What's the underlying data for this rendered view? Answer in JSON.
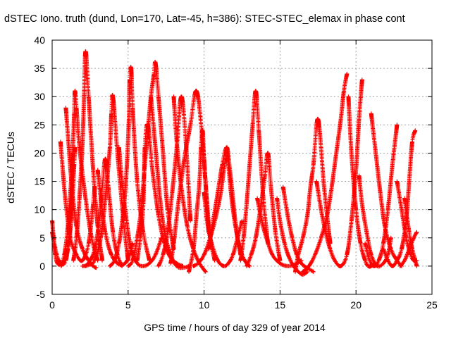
{
  "chart_data": {
    "type": "scatter",
    "title": "dSTEC Iono. truth (dund, Lon=170, Lat=-45, h=386): STEC-STEC_elemax in phase cont",
    "xlabel": "GPS time / hours of day 329 of year 2014",
    "ylabel": "dSTEC  / TECUs",
    "xlim": [
      0,
      25
    ],
    "ylim": [
      -5,
      40
    ],
    "xticks": [
      0,
      5,
      10,
      15,
      20,
      25
    ],
    "yticks": [
      -5,
      0,
      5,
      10,
      15,
      20,
      25,
      30,
      35,
      40
    ],
    "grid": true,
    "marker": "+",
    "color": "#ff0000",
    "series": [
      {
        "x": [
          0,
          0.1,
          0.2,
          0.35,
          0.55,
          0.8,
          1.1,
          1.3,
          1.45,
          1.5
        ],
        "y": [
          8,
          5,
          2,
          0.5,
          0.3,
          1,
          4,
          10,
          18,
          21
        ]
      },
      {
        "x": [
          0,
          0.3,
          0.6,
          0.9,
          1.15,
          1.3,
          1.35
        ],
        "y": [
          6,
          2,
          0.5,
          1,
          6,
          14,
          20
        ]
      },
      {
        "x": [
          0.55,
          0.7,
          0.9,
          1.2,
          1.6,
          2.0,
          2.4,
          2.7,
          2.8
        ],
        "y": [
          22,
          17,
          11,
          5,
          2,
          1,
          4,
          11,
          14
        ]
      },
      {
        "x": [
          0.9,
          1.1,
          1.3,
          1.6,
          2.0,
          2.4,
          2.7,
          2.9
        ],
        "y": [
          28,
          21,
          14,
          7,
          3,
          1,
          0,
          -0.3
        ]
      },
      {
        "x": [
          0.6,
          0.8,
          1.0,
          1.2,
          1.35,
          1.45,
          1.5,
          1.6,
          1.8,
          2.2,
          2.6,
          3.0
        ],
        "y": [
          0,
          2,
          6,
          13,
          20,
          27,
          31,
          28,
          21,
          12,
          5,
          1
        ]
      },
      {
        "x": [
          1.4,
          1.6,
          1.8,
          2.0,
          2.1,
          2.2,
          2.4,
          2.7,
          3.0,
          3.3
        ],
        "y": [
          1,
          5,
          12,
          22,
          30,
          38,
          30,
          17,
          7,
          1
        ]
      },
      {
        "x": [
          2.2,
          2.5,
          2.8,
          3.1,
          3.3,
          3.5,
          3.7,
          4.0,
          4.3,
          4.6
        ],
        "y": [
          0,
          1,
          3,
          8,
          14,
          19,
          14,
          6,
          2,
          0
        ]
      },
      {
        "x": [
          2.0,
          2.4,
          2.8,
          3.2,
          3.5,
          3.8,
          3.9,
          4.0,
          4.3,
          4.7,
          5.0
        ],
        "y": [
          0,
          0.2,
          1,
          5,
          12,
          21,
          27,
          30,
          20,
          8,
          1
        ]
      },
      {
        "x": [
          3.0,
          3.2,
          3.5,
          3.9,
          4.4,
          4.8,
          5.1,
          5.3
        ],
        "y": [
          17,
          12,
          6,
          2,
          0.3,
          0.5,
          2,
          4
        ]
      },
      {
        "x": [
          3.8,
          4.1,
          4.4,
          4.7,
          4.9,
          5.05,
          5.1,
          5.2,
          5.3,
          5.6,
          6.0,
          6.4
        ],
        "y": [
          0,
          1,
          4,
          10,
          17,
          26,
          33,
          35,
          28,
          15,
          6,
          1
        ]
      },
      {
        "x": [
          4.4,
          4.6,
          4.9,
          5.2,
          5.6,
          6.0,
          6.4,
          6.8,
          7.2
        ],
        "y": [
          21,
          15,
          8,
          3,
          0.5,
          0,
          0.5,
          2,
          5
        ]
      },
      {
        "x": [
          5.0,
          5.3,
          5.6,
          5.9,
          6.1,
          6.3,
          6.5,
          6.7,
          6.8,
          7.0,
          7.3,
          7.6,
          8.0
        ],
        "y": [
          0,
          1,
          5,
          11,
          18,
          24,
          30,
          34,
          36,
          30,
          20,
          10,
          3
        ]
      },
      {
        "x": [
          5.6,
          5.8,
          6.0,
          6.1,
          6.3,
          6.6,
          7.0,
          7.4,
          7.8,
          8.2,
          8.6
        ],
        "y": [
          1,
          5,
          11,
          21,
          25,
          17,
          9,
          4,
          1.5,
          0.5,
          0
        ]
      },
      {
        "x": [
          6.5,
          6.7,
          6.9,
          7.1,
          7.4,
          7.8,
          8.2,
          8.6,
          9.0
        ],
        "y": [
          30,
          24,
          18,
          12,
          6,
          2,
          0,
          -0.3,
          0
        ]
      },
      {
        "x": [
          7.0,
          7.3,
          7.6,
          7.9,
          8.2,
          8.5,
          8.8,
          9.1
        ],
        "y": [
          0,
          2,
          6,
          13,
          21,
          30,
          22,
          8
        ]
      },
      {
        "x": [
          7.8,
          8.0,
          8.3,
          8.7,
          9.1,
          9.5,
          9.9,
          10.3
        ],
        "y": [
          0.5,
          4,
          11,
          19,
          25,
          31,
          22,
          6
        ]
      },
      {
        "x": [
          8.0,
          8.2,
          8.5,
          8.9,
          9.3,
          9.7,
          10.1
        ],
        "y": [
          30,
          22,
          14,
          7,
          3,
          0.5,
          -1
        ]
      },
      {
        "x": [
          9.0,
          9.3,
          9.5,
          9.7,
          9.8,
          9.9,
          10.0,
          10.2,
          10.4,
          10.7
        ],
        "y": [
          -1,
          3,
          9,
          15,
          21,
          24,
          19,
          11,
          5,
          1
        ]
      },
      {
        "x": [
          9.3,
          9.6,
          10.0,
          10.4,
          10.8,
          11.1,
          11.3,
          11.5
        ],
        "y": [
          0,
          0.5,
          2,
          5,
          9,
          13,
          17,
          20
        ]
      },
      {
        "x": [
          10.0,
          10.2,
          10.5,
          10.9,
          11.3,
          11.6,
          11.9,
          12.2,
          12.5
        ],
        "y": [
          13,
          8,
          4,
          1,
          0,
          0.5,
          2,
          5,
          8
        ]
      },
      {
        "x": [
          10.3,
          10.6,
          10.9,
          11.2,
          11.5,
          11.7,
          11.9,
          12.1,
          12.4
        ],
        "y": [
          3,
          8,
          13,
          18,
          21,
          17,
          12,
          7,
          2
        ]
      },
      {
        "x": [
          11.5,
          11.7,
          11.9,
          12.2,
          12.5,
          12.8,
          13.0
        ],
        "y": [
          21,
          15,
          10,
          5,
          2,
          0.5,
          0
        ]
      },
      {
        "x": [
          12.4,
          12.6,
          12.8,
          13.0,
          13.2,
          13.4,
          13.6,
          13.9,
          14.2
        ],
        "y": [
          1,
          5,
          11,
          18,
          25,
          31,
          24,
          12,
          4
        ]
      },
      {
        "x": [
          12.8,
          13.1,
          13.4,
          13.7,
          14.0,
          14.2,
          14.4,
          14.7,
          15.0
        ],
        "y": [
          0,
          2,
          5,
          10,
          16,
          20,
          14,
          6,
          1
        ]
      },
      {
        "x": [
          13.5,
          13.8,
          14.1,
          14.5,
          15.0,
          15.5,
          16.0,
          16.4
        ],
        "y": [
          12,
          8,
          5,
          2,
          0.5,
          0,
          0.3,
          1
        ]
      },
      {
        "x": [
          14.8,
          15.0,
          15.3,
          15.6,
          15.9,
          16.2,
          16.5,
          16.8
        ],
        "y": [
          12,
          8,
          4,
          1.5,
          0,
          -1,
          -1.5,
          -1
        ]
      },
      {
        "x": [
          15.2,
          15.5,
          15.8,
          16.1,
          16.4,
          16.6,
          16.9,
          17.2
        ],
        "y": [
          14,
          9,
          5,
          2,
          0.5,
          0,
          -0.5,
          -1
        ]
      },
      {
        "x": [
          16.0,
          16.2,
          16.5,
          16.8,
          17.0,
          17.2,
          17.5,
          17.9,
          18.3
        ],
        "y": [
          -1,
          2,
          5,
          9,
          14,
          18,
          26,
          14,
          4
        ]
      },
      {
        "x": [
          16.5,
          16.9,
          17.3,
          17.7,
          18.1,
          18.4,
          18.7,
          19.0,
          19.2,
          19.4
        ],
        "y": [
          -1,
          0,
          2,
          5,
          9,
          14,
          20,
          26,
          31,
          34
        ]
      },
      {
        "x": [
          17.4,
          17.7,
          18.0,
          18.3,
          18.6,
          19.0,
          19.4,
          19.7,
          20.0,
          20.2,
          20.4
        ],
        "y": [
          15,
          10,
          6,
          3,
          1,
          0,
          2,
          8,
          17,
          26,
          33
        ]
      },
      {
        "x": [
          19.5,
          19.7,
          20.0,
          20.3,
          20.6,
          20.8,
          21.0,
          21.2
        ],
        "y": [
          30,
          20,
          10,
          4,
          1,
          0,
          0,
          0.5
        ]
      },
      {
        "x": [
          20.2,
          20.4,
          20.7,
          21.0,
          21.4,
          21.8,
          22.1,
          22.3
        ],
        "y": [
          16,
          11,
          6,
          2,
          0,
          0.5,
          2,
          5
        ]
      },
      {
        "x": [
          20.6,
          20.9,
          21.2,
          21.5,
          21.8,
          22.1,
          22.4,
          22.7
        ],
        "y": [
          4,
          1,
          0,
          1,
          4,
          10,
          18,
          25
        ]
      },
      {
        "x": [
          21.0,
          21.3,
          21.6,
          21.9,
          22.3,
          22.7,
          23.0
        ],
        "y": [
          27,
          20,
          13,
          7,
          3,
          1,
          0
        ]
      },
      {
        "x": [
          21.8,
          22.1,
          22.4,
          22.7,
          23.0,
          23.3,
          23.5,
          23.7,
          23.9
        ],
        "y": [
          3,
          1,
          0,
          1,
          3,
          8,
          15,
          22,
          24
        ]
      },
      {
        "x": [
          22.7,
          23.0,
          23.3,
          23.6,
          23.8,
          24.0
        ],
        "y": [
          15,
          10,
          5,
          2,
          1,
          1
        ]
      },
      {
        "x": [
          22.9,
          23.2,
          23.5,
          23.8,
          24.0
        ],
        "y": [
          0,
          1,
          3,
          5,
          6
        ]
      },
      {
        "x": [
          23.2,
          23.5,
          23.7,
          23.9,
          24.0
        ],
        "y": [
          12,
          6,
          3,
          1,
          0
        ]
      }
    ]
  }
}
